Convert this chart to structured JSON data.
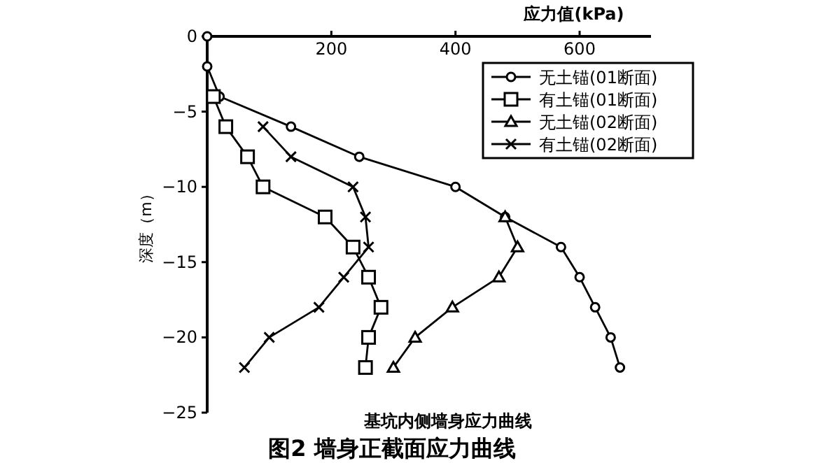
{
  "chart_data": {
    "type": "line",
    "title": "图2  墙身正截面应力曲线",
    "subtitle": "基坑内侧墙身应力曲线",
    "xlabel": "应力值(kPa)",
    "ylabel": "深度（m）",
    "xlim": [
      0,
      715
    ],
    "xticks": [
      200,
      400,
      600
    ],
    "ylim": [
      -25,
      0
    ],
    "yticks": [
      0,
      -5,
      -10,
      -15,
      -20,
      -25
    ],
    "grid": false,
    "legend": "top right",
    "line_style": "solid",
    "series": [
      {
        "name": "无土锚(01断面)",
        "color": "#000000",
        "marker": "circle",
        "x": [
          0,
          0,
          20,
          135,
          245,
          400,
          480,
          570,
          600,
          625,
          650,
          665
        ],
        "values": [
          0,
          -2,
          -4,
          -6,
          -8,
          -10,
          -12,
          -14,
          -16,
          -18,
          -20,
          -22
        ]
      },
      {
        "name": "有土锚(01断面)",
        "color": "#000000",
        "marker": "square",
        "x": [
          null,
          null,
          10,
          30,
          65,
          90,
          190,
          235,
          260,
          280,
          260,
          255
        ],
        "values": [
          null,
          null,
          -4,
          -6,
          -8,
          -10,
          -12,
          -14,
          -16,
          -18,
          -20,
          -22
        ]
      },
      {
        "name": "无土锚(02断面)",
        "color": "#000000",
        "marker": "triangle",
        "x": [
          null,
          null,
          null,
          null,
          null,
          null,
          480,
          500,
          470,
          395,
          335,
          300
        ],
        "values": [
          null,
          null,
          null,
          null,
          null,
          null,
          -12,
          -14,
          -16,
          -18,
          -20,
          -22
        ]
      },
      {
        "name": "有土锚(02断面)",
        "color": "#000000",
        "marker": "cross",
        "x": [
          null,
          null,
          null,
          90,
          135,
          235,
          255,
          260,
          220,
          180,
          100,
          60
        ],
        "values": [
          null,
          null,
          null,
          -6,
          -8,
          -10,
          -12,
          -14,
          -16,
          -18,
          -20,
          -22
        ]
      }
    ]
  }
}
